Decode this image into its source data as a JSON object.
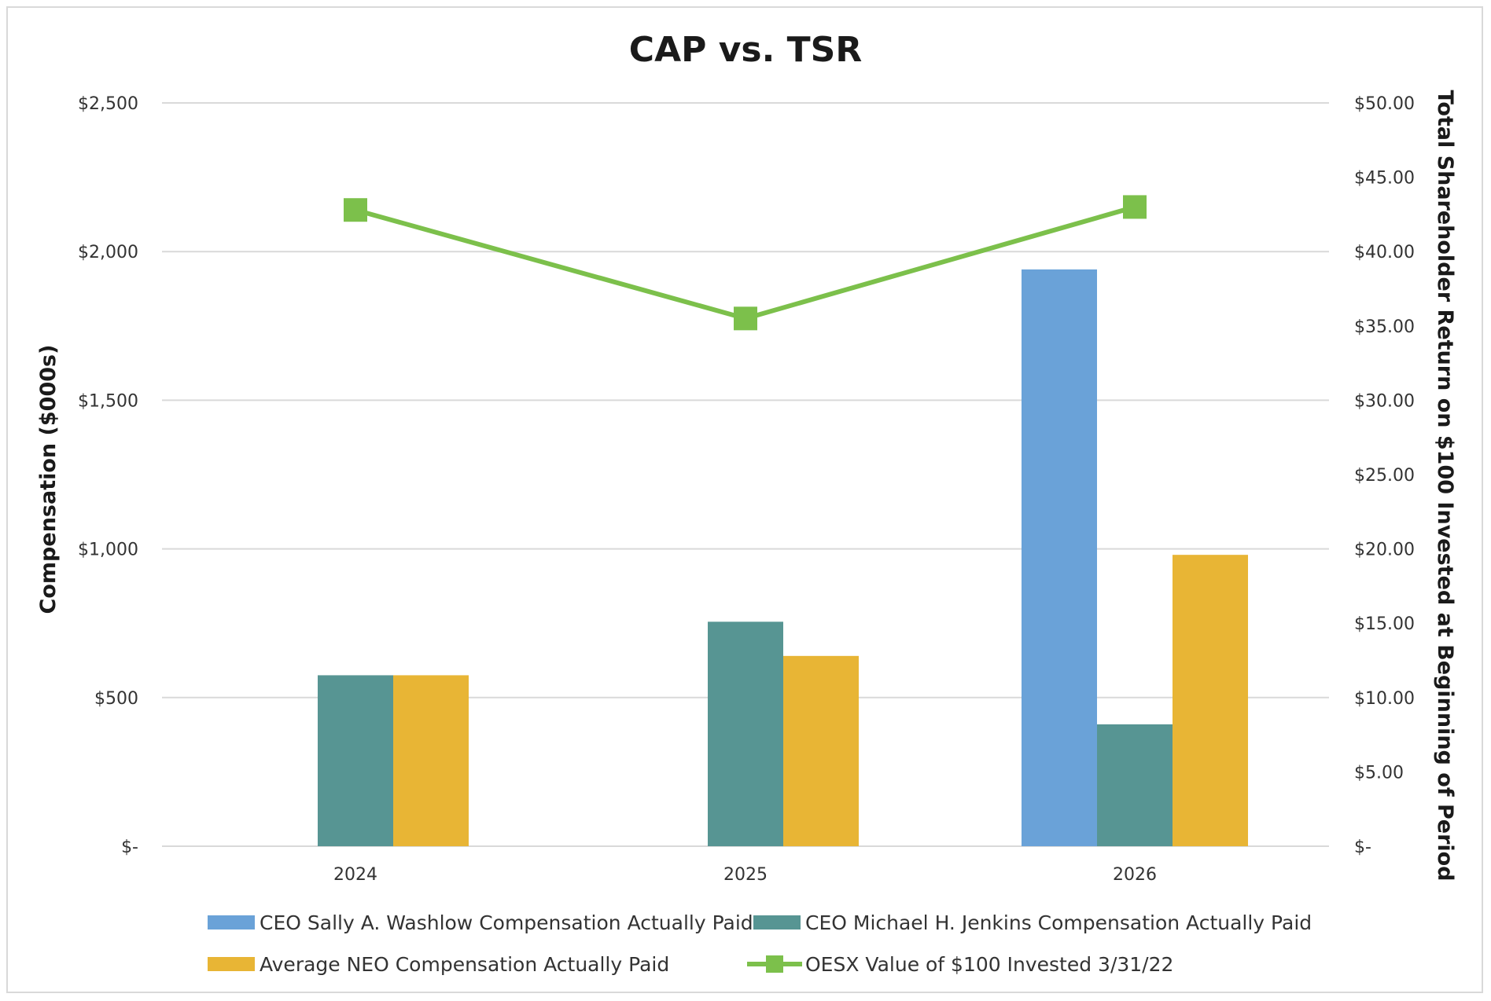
{
  "colors": {
    "background": "#ffffff",
    "gridline": "#d9d9d9",
    "washlow": "#6aa2d8",
    "jenkins": "#579593",
    "neo": "#e8b535",
    "tsr": "#7cc04b"
  },
  "chart_data": {
    "type": "bar",
    "title": "CAP vs. TSR",
    "categories": [
      "2024",
      "2025",
      "2026"
    ],
    "ylabel": "Compensation ($000s)",
    "ylabel_right": "Total Shareholder Return on $100 Invested at Beginning of Period",
    "ylim": [
      0,
      2500
    ],
    "ylim_right": [
      0,
      50
    ],
    "yticks": [
      0,
      500,
      1000,
      1500,
      2000,
      2500
    ],
    "ytick_labels": [
      "$-",
      "$500",
      "$1,000",
      "$1,500",
      "$2,000",
      "$2,500"
    ],
    "yticks_right": [
      0,
      5,
      10,
      15,
      20,
      25,
      30,
      35,
      40,
      45,
      50
    ],
    "ytick_labels_right": [
      "$-",
      "$5.00",
      "$10.00",
      "$15.00",
      "$20.00",
      "$25.00",
      "$30.00",
      "$35.00",
      "$40.00",
      "$45.00",
      "$50.00"
    ],
    "grid": true,
    "legend_position": "bottom",
    "series": [
      {
        "name": "CEO Sally A. Washlow Compensation Actually Paid",
        "type": "bar",
        "axis": "left",
        "color": "#6aa2d8",
        "values": [
          null,
          null,
          1940
        ]
      },
      {
        "name": "CEO Michael H. Jenkins Compensation Actually Paid",
        "type": "bar",
        "axis": "left",
        "color": "#579593",
        "values": [
          575,
          755,
          410
        ]
      },
      {
        "name": "Average NEO Compensation Actually Paid",
        "type": "bar",
        "axis": "left",
        "color": "#e8b535",
        "values": [
          575,
          640,
          980
        ]
      },
      {
        "name": "OESX Value of $100 Invested 3/31/22",
        "type": "line",
        "axis": "right",
        "color": "#7cc04b",
        "marker": "square",
        "values": [
          42.8,
          35.5,
          43.0
        ]
      }
    ]
  }
}
